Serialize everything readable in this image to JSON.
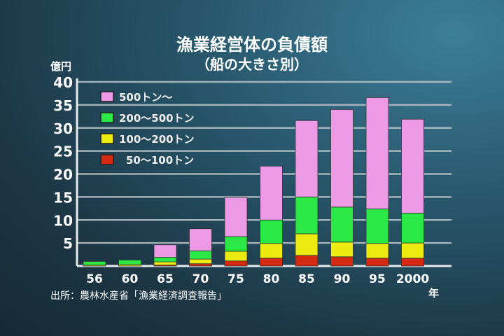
{
  "chart_data": {
    "type": "bar",
    "stacked": true,
    "title": "漁業経営体の負債額",
    "subtitle": "（船の大きさ別）",
    "ylabel": "億円",
    "xlabel_suffix": "年",
    "ylim": [
      0,
      40
    ],
    "yticks": [
      5,
      10,
      15,
      20,
      25,
      30,
      35,
      40
    ],
    "categories": [
      "56",
      "60",
      "65",
      "70",
      "75",
      "80",
      "85",
      "90",
      "95",
      "2000"
    ],
    "series": [
      {
        "name": "50〜100トン",
        "color": "#d42a12",
        "values": [
          0,
          0,
          0.2,
          0.5,
          1.1,
          1.7,
          2.3,
          2.0,
          1.7,
          1.7
        ]
      },
      {
        "name": "100〜200トン",
        "color": "#ecec12",
        "values": [
          0.2,
          0.3,
          0.7,
          1.0,
          2.1,
          3.2,
          4.7,
          3.2,
          3.2,
          3.3
        ]
      },
      {
        "name": "200〜500トン",
        "color": "#2ae845",
        "values": [
          0.8,
          1.0,
          1.0,
          1.8,
          3.2,
          5.1,
          8.0,
          7.6,
          7.5,
          6.5
        ]
      },
      {
        "name": "500トン〜",
        "color": "#ec9ae6",
        "values": [
          0,
          0,
          2.7,
          4.8,
          8.5,
          11.7,
          16.6,
          21.2,
          24.2,
          20.4
        ]
      }
    ],
    "legend": "top-left",
    "grid": true
  },
  "source": "出所：農林水産省「漁業経済調査報告」"
}
